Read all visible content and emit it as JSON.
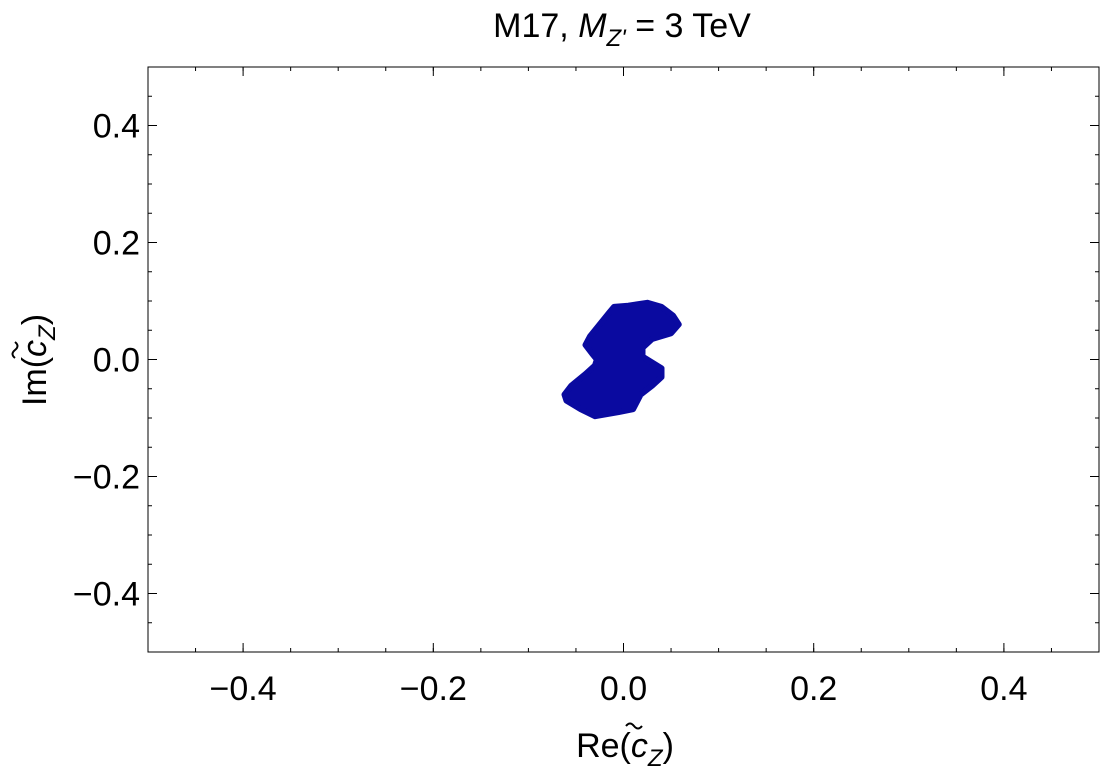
{
  "chart_data": {
    "type": "area",
    "title_parts": {
      "prefix": "M17, ",
      "symbol": "M",
      "subscript": "Z'",
      "suffix": " = 3 TeV"
    },
    "xlabel": {
      "pre": "Re(",
      "sym": "c",
      "sub": "Z",
      "post": ")"
    },
    "ylabel": {
      "pre": "Im(",
      "sym": "c",
      "sub": "Z",
      "post": ")"
    },
    "xlim": [
      -0.5,
      0.5
    ],
    "ylim": [
      -0.5,
      0.5
    ],
    "xticks": [
      -0.4,
      -0.2,
      0.0,
      0.2,
      0.4
    ],
    "yticks": [
      -0.4,
      -0.2,
      0.0,
      0.2,
      0.4
    ],
    "xtick_labels": [
      "−0.4",
      "−0.2",
      "0.0",
      "0.2",
      "0.4"
    ],
    "ytick_labels": [
      "−0.4",
      "−0.2",
      "0.0",
      "0.2",
      "0.4"
    ],
    "minor_step": 0.05,
    "grid": false,
    "region": {
      "name": "allowed region",
      "color": "#0a0aa0",
      "boundary": [
        [
          -0.01,
          0.09
        ],
        [
          0.005,
          0.092
        ],
        [
          0.025,
          0.097
        ],
        [
          0.04,
          0.09
        ],
        [
          0.052,
          0.075
        ],
        [
          0.058,
          0.06
        ],
        [
          0.05,
          0.045
        ],
        [
          0.03,
          0.035
        ],
        [
          0.02,
          0.02
        ],
        [
          0.02,
          0.005
        ],
        [
          0.03,
          -0.005
        ],
        [
          0.04,
          -0.015
        ],
        [
          0.04,
          -0.03
        ],
        [
          0.03,
          -0.045
        ],
        [
          0.018,
          -0.06
        ],
        [
          0.01,
          -0.085
        ],
        [
          -0.005,
          -0.09
        ],
        [
          -0.03,
          -0.097
        ],
        [
          -0.045,
          -0.085
        ],
        [
          -0.06,
          -0.07
        ],
        [
          -0.062,
          -0.06
        ],
        [
          -0.055,
          -0.045
        ],
        [
          -0.04,
          -0.025
        ],
        [
          -0.03,
          -0.01
        ],
        [
          -0.028,
          0.0
        ],
        [
          -0.033,
          0.01
        ],
        [
          -0.04,
          0.025
        ],
        [
          -0.035,
          0.04
        ],
        [
          -0.025,
          0.06
        ],
        [
          -0.015,
          0.08
        ]
      ]
    }
  }
}
